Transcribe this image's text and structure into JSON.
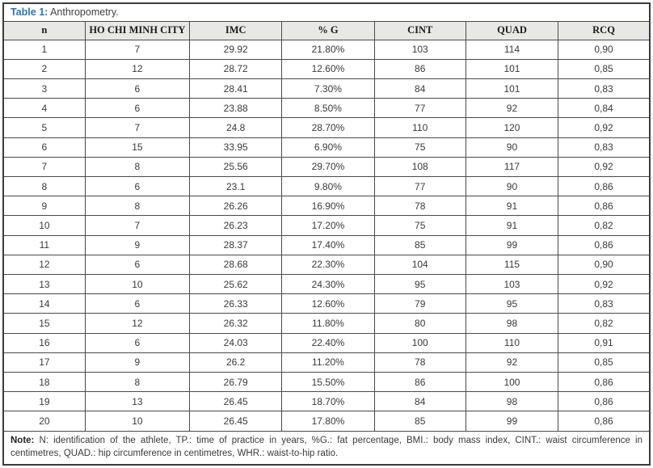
{
  "title": {
    "label": "Table 1:",
    "text": " Anthropometry."
  },
  "table": {
    "columns": [
      "n",
      "HO CHI MINH CITY",
      "IMC",
      "% G",
      "CINT",
      "QUAD",
      "RCQ"
    ],
    "rows": [
      [
        "1",
        "7",
        "29.92",
        "21.80%",
        "103",
        "114",
        "0,90"
      ],
      [
        "2",
        "12",
        "28.72",
        "12.60%",
        "86",
        "101",
        "0,85"
      ],
      [
        "3",
        "6",
        "28.41",
        "7.30%",
        "84",
        "101",
        "0,83"
      ],
      [
        "4",
        "6",
        "23.88",
        "8.50%",
        "77",
        "92",
        "0,84"
      ],
      [
        "5",
        "7",
        "24.8",
        "28.70%",
        "110",
        "120",
        "0,92"
      ],
      [
        "6",
        "15",
        "33.95",
        "6.90%",
        "75",
        "90",
        "0,83"
      ],
      [
        "7",
        "8",
        "25.56",
        "29.70%",
        "108",
        "117",
        "0,92"
      ],
      [
        "8",
        "6",
        "23.1",
        "9.80%",
        "77",
        "90",
        "0,86"
      ],
      [
        "9",
        "8",
        "26.26",
        "16.90%",
        "78",
        "91",
        "0,86"
      ],
      [
        "10",
        "7",
        "26.23",
        "17.20%",
        "75",
        "91",
        "0,82"
      ],
      [
        "11",
        "9",
        "28.37",
        "17.40%",
        "85",
        "99",
        "0,86"
      ],
      [
        "12",
        "6",
        "28.68",
        "22.30%",
        "104",
        "115",
        "0,90"
      ],
      [
        "13",
        "10",
        "25.62",
        "24.30%",
        "95",
        "103",
        "0,92"
      ],
      [
        "14",
        "6",
        "26.33",
        "12.60%",
        "79",
        "95",
        "0,83"
      ],
      [
        "15",
        "12",
        "26.32",
        "11.80%",
        "80",
        "98",
        "0,82"
      ],
      [
        "16",
        "6",
        "24.03",
        "22.40%",
        "100",
        "110",
        "0,91"
      ],
      [
        "17",
        "9",
        "26.2",
        "11.20%",
        "78",
        "92",
        "0,85"
      ],
      [
        "18",
        "8",
        "26.79",
        "15.50%",
        "86",
        "100",
        "0,86"
      ],
      [
        "19",
        "13",
        "26.45",
        "18.70%",
        "84",
        "98",
        "0,86"
      ],
      [
        "20",
        "10",
        "26.45",
        "17.80%",
        "85",
        "99",
        "0,86"
      ]
    ]
  },
  "note": {
    "label": "Note:",
    "text": " N: identification of the athlete, TP.: time of practice in years, %G.: fat percentage, BMI.: body mass index, CINT.: waist circumference in centimetres, QUAD.: hip circumference in centimetres, WHR.: waist-to-hip ratio."
  },
  "colors": {
    "accent": "#2e74b5",
    "header_bg": "#eae8e4",
    "border": "#4a4a4a",
    "text": "#3a3a3a"
  }
}
